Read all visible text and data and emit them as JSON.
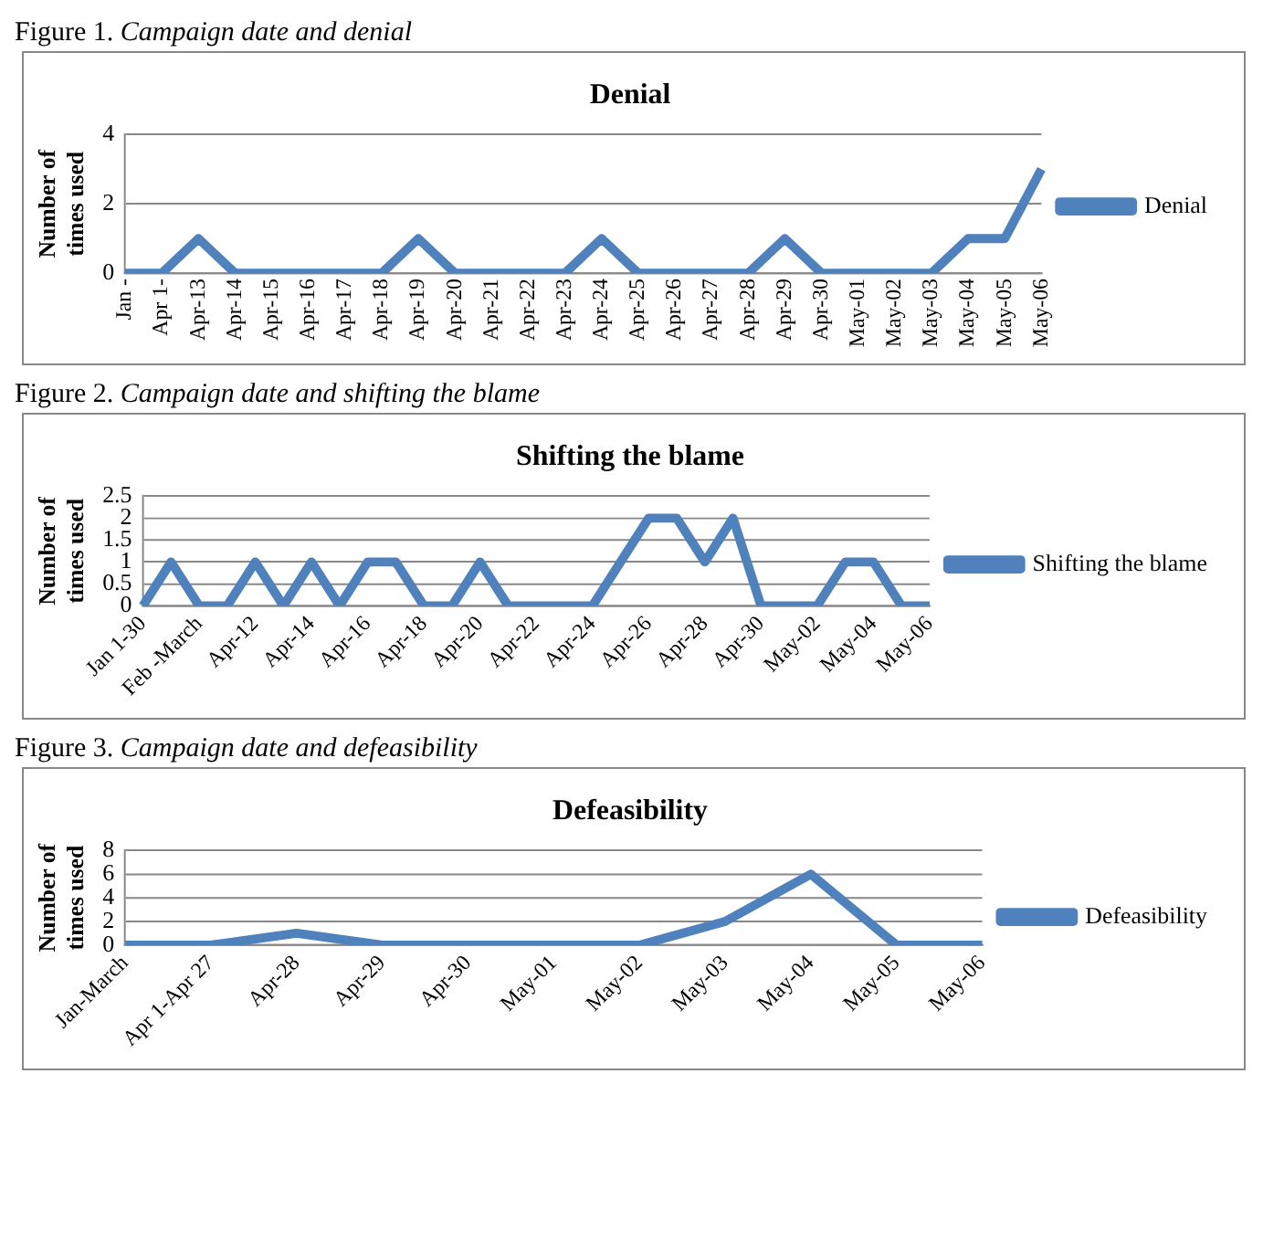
{
  "chart_data": [
    {
      "type": "line",
      "title": "Denial",
      "annotations": [
        "Figure 1. Campaign date and denial"
      ],
      "ylabel": "Number of times used",
      "categories": [
        "Jan -",
        "Apr 1-",
        "Apr-13",
        "Apr-14",
        "Apr-15",
        "Apr-16",
        "Apr-17",
        "Apr-18",
        "Apr-19",
        "Apr-20",
        "Apr-21",
        "Apr-22",
        "Apr-23",
        "Apr-24",
        "Apr-25",
        "Apr-26",
        "Apr-27",
        "Apr-28",
        "Apr-29",
        "Apr-30",
        "May-01",
        "May-02",
        "May-03",
        "May-04",
        "May-05",
        "May-06"
      ],
      "series": [
        {
          "name": "Denial",
          "color": "#4f81bd",
          "values": [
            0,
            0,
            1,
            0,
            0,
            0,
            0,
            0,
            1,
            0,
            0,
            0,
            0,
            1,
            0,
            0,
            0,
            0,
            1,
            0,
            0,
            0,
            0,
            1,
            1,
            3
          ]
        }
      ],
      "ylim": [
        0,
        4
      ],
      "yticks": [
        0,
        2,
        4
      ],
      "grid": "y",
      "legend": "right",
      "marker": "none"
    },
    {
      "type": "line",
      "title": "Shifting the blame",
      "annotations": [
        "Figure 2. Campaign date and shifting the blame"
      ],
      "ylabel": "Number of times used",
      "categories": [
        "Jan 1-30",
        null,
        "Feb -March",
        null,
        "Apr-12",
        null,
        "Apr-14",
        null,
        "Apr-16",
        null,
        "Apr-18",
        null,
        "Apr-20",
        null,
        "Apr-22",
        null,
        "Apr-24",
        null,
        "Apr-26",
        null,
        "Apr-28",
        null,
        "Apr-30",
        null,
        "May-02",
        null,
        "May-04",
        null,
        "May-06"
      ],
      "series": [
        {
          "name": "Shifting the blame",
          "color": "#4f81bd",
          "values": [
            0,
            1,
            0,
            0,
            1,
            0,
            1,
            0,
            1,
            1,
            0,
            0,
            1,
            0,
            0,
            0,
            0,
            1,
            2,
            2,
            1,
            2,
            0,
            0,
            0,
            1,
            1,
            0,
            0
          ]
        }
      ],
      "ylim": [
        0,
        2.5
      ],
      "yticks": [
        0,
        0.5,
        1,
        1.5,
        2,
        2.5
      ],
      "grid": "y",
      "legend": "right",
      "marker": "none"
    },
    {
      "type": "line",
      "title": "Defeasibility",
      "annotations": [
        "Figure 3. Campaign date and defeasibility"
      ],
      "ylabel": "Number of times used",
      "categories": [
        "Jan-March",
        "Apr 1-Apr 27",
        "Apr-28",
        "Apr-29",
        "Apr-30",
        "May-01",
        "May-02",
        "May-03",
        "May-04",
        "May-05",
        "May-06"
      ],
      "series": [
        {
          "name": "Defeasibility",
          "color": "#4f81bd",
          "values": [
            0,
            0,
            1,
            0,
            0,
            0,
            0,
            2,
            6,
            0,
            0
          ]
        }
      ],
      "ylim": [
        0,
        8
      ],
      "yticks": [
        0,
        2,
        4,
        6,
        8
      ],
      "grid": "y",
      "legend": "right",
      "marker": "none"
    }
  ]
}
